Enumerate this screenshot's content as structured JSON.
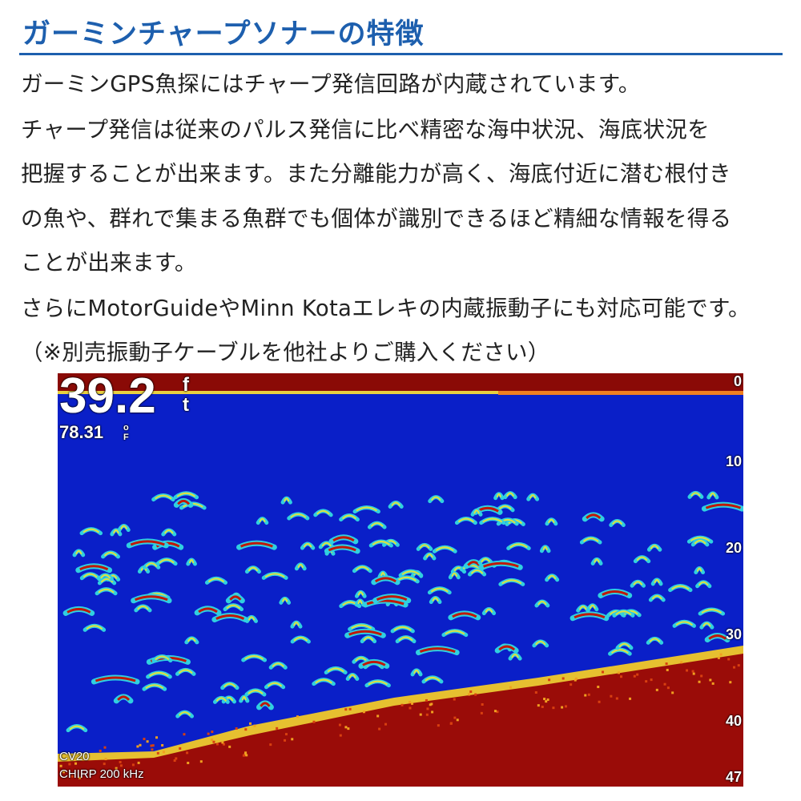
{
  "header": {
    "title": "ガーミンチャープソナーの特徴"
  },
  "body": {
    "lines": [
      "ガーミンGPS魚探にはチャープ発信回路が内蔵されています。",
      "チャープ発信は従来のパルス発信に比べ精密な海中状況、海底状況を",
      "把握することが出来ます。また分離能力が高く、海底付近に潜む根付き",
      "の魚や、群れで集まる魚群でも個体が識別できるほど精細な情報を得る",
      "ことが出来ます。",
      "さらにMotorGuideやMinn Kotaエレキの内蔵振動子にも対応可能です。",
      "（※別売振動子ケーブルを他社よりご購入ください）"
    ]
  },
  "sonar": {
    "depth": "39.2",
    "depth_unit_top": "f",
    "depth_unit_bottom": "t",
    "temperature": "78.31",
    "temp_unit_top": "o",
    "temp_unit_bottom": "F",
    "transducer": "CV20",
    "frequency": "CHIRP 200 kHz",
    "scale": [
      "0",
      "10",
      "20",
      "30",
      "40",
      "47"
    ],
    "colors": {
      "water": "#0a1fc8",
      "bottom": "#9a0c08",
      "surface": "#8a0a06",
      "title": "#1d5fae"
    }
  }
}
